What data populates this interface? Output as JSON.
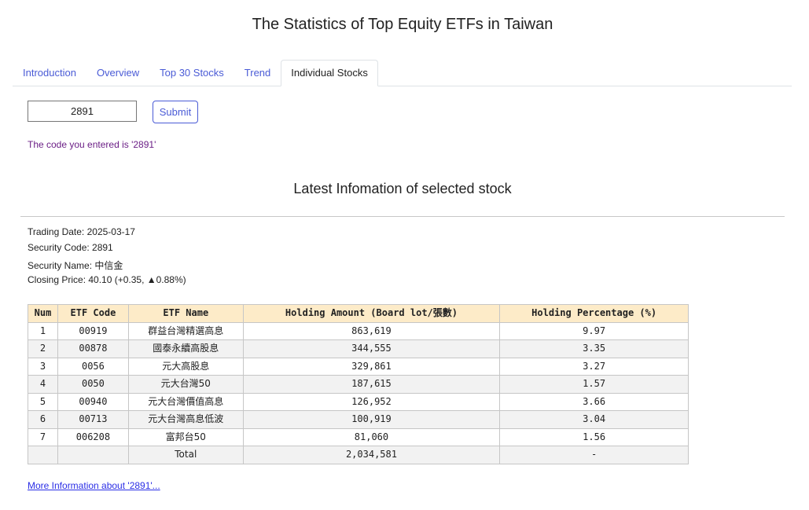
{
  "header": {
    "title": "The Statistics of Top Equity ETFs in Taiwan"
  },
  "tabs": [
    {
      "label": "Introduction",
      "active": false
    },
    {
      "label": "Overview",
      "active": false
    },
    {
      "label": "Top 30 Stocks",
      "active": false
    },
    {
      "label": "Trend",
      "active": false
    },
    {
      "label": "Individual Stocks",
      "active": true
    }
  ],
  "form": {
    "code_value": "2891",
    "submit_label": "Submit",
    "entered_message": "The code you entered is '2891'"
  },
  "section": {
    "title": "Latest Infomation of selected stock"
  },
  "info": {
    "trading_date": "Trading Date: 2025-03-17",
    "security_code": "Security Code: 2891",
    "security_name": "Security Name: 中信金",
    "closing_price": "Closing Price: 40.10 (+0.35, ▲0.88%)"
  },
  "table": {
    "headers": [
      "Num",
      "ETF Code",
      "ETF Name",
      "Holding Amount (Board lot/張數)",
      "Holding Percentage (%)"
    ],
    "rows": [
      [
        "1",
        "00919",
        "群益台灣精選高息",
        "863,619",
        "9.97"
      ],
      [
        "2",
        "00878",
        "國泰永續高股息",
        "344,555",
        "3.35"
      ],
      [
        "3",
        "0056",
        "元大高股息",
        "329,861",
        "3.27"
      ],
      [
        "4",
        "0050",
        "元大台灣50",
        "187,615",
        "1.57"
      ],
      [
        "5",
        "00940",
        "元大台灣價值高息",
        "126,952",
        "3.66"
      ],
      [
        "6",
        "00713",
        "元大台灣高息低波",
        "100,919",
        "3.04"
      ],
      [
        "7",
        "006208",
        "富邦台50",
        "81,060",
        "1.56"
      ],
      [
        "",
        "",
        "Total",
        "2,034,581",
        "-"
      ]
    ]
  },
  "footer": {
    "more_link": "More Information about '2891'..."
  },
  "colors": {
    "accent": "#4a5bd6",
    "header_bg": "#fdebc8",
    "message": "#6b1f86",
    "link": "#2b2ee6"
  }
}
